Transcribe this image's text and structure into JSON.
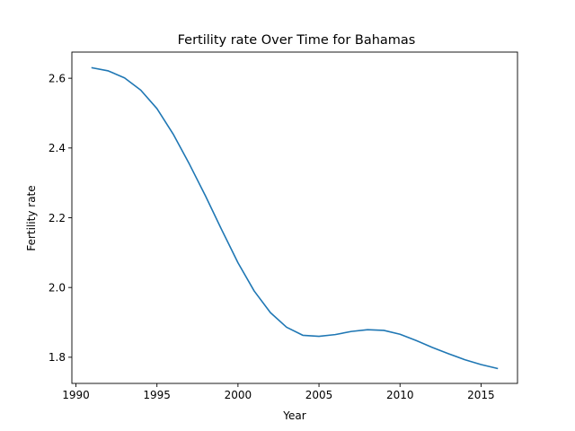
{
  "chart_data": {
    "type": "line",
    "title": "Fertility rate Over Time for Bahamas",
    "xlabel": "Year",
    "ylabel": "Fertility rate",
    "xlim": [
      1989.75,
      2017.25
    ],
    "ylim": [
      1.725,
      2.675
    ],
    "xticks": [
      1990,
      1995,
      2000,
      2005,
      2010,
      2015
    ],
    "yticks": [
      1.8,
      2.0,
      2.2,
      2.4,
      2.6
    ],
    "ytick_labels": [
      "1.8",
      "2.0",
      "2.2",
      "2.4",
      "2.6"
    ],
    "grid": false,
    "line_color": "#1f77b4",
    "series": [
      {
        "x": [
          1991,
          1992,
          1993,
          1994,
          1995,
          1996,
          1997,
          1998,
          1999,
          2000,
          2001,
          2002,
          2003,
          2004,
          2005,
          2006,
          2007,
          2008,
          2009,
          2010,
          2011,
          2012,
          2013,
          2014,
          2015,
          2016
        ],
        "values": [
          2.63,
          2.621,
          2.601,
          2.566,
          2.513,
          2.44,
          2.354,
          2.262,
          2.165,
          2.071,
          1.99,
          1.928,
          1.886,
          1.863,
          1.86,
          1.865,
          1.874,
          1.879,
          1.877,
          1.866,
          1.848,
          1.828,
          1.81,
          1.793,
          1.779,
          1.768
        ]
      }
    ]
  }
}
